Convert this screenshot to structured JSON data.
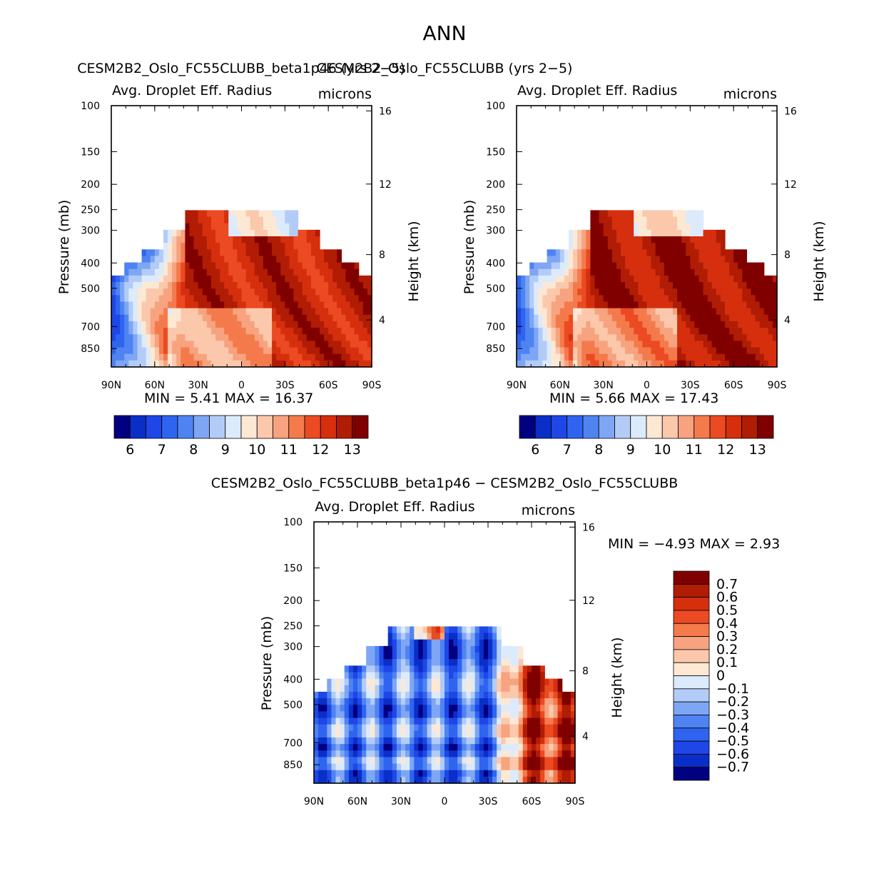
{
  "main_title": "ANN",
  "chart_data": [
    {
      "type": "heatmap",
      "title": "CESM2B2_Oslo_FC55CLUBB_beta1p46 (yrs 2−5)",
      "variable": "Avg. Droplet Eff. Radius",
      "units": "microns",
      "ylabel": "Pressure (mb)",
      "y2label": "Height (km)",
      "x_ticks": [
        "90N",
        "60N",
        "30N",
        "0",
        "30S",
        "60S",
        "90S"
      ],
      "y_ticks": [
        "100",
        "150",
        "200",
        "250",
        "300",
        "400",
        "500",
        "700",
        "850"
      ],
      "y2_ticks": [
        "16",
        "12",
        "8",
        "4"
      ],
      "min_label": "MIN =",
      "min_value": "5.41",
      "max_label": "MAX =",
      "max_value": "16.37",
      "colorbar_labels": [
        "6",
        "7",
        "8",
        "9",
        "10",
        "11",
        "12",
        "13"
      ]
    },
    {
      "type": "heatmap",
      "title": "CESM2B2_Oslo_FC55CLUBB (yrs 2−5)",
      "variable": "Avg. Droplet Eff. Radius",
      "units": "microns",
      "ylabel": "Pressure (mb)",
      "y2label": "Height (km)",
      "x_ticks": [
        "90N",
        "60N",
        "30N",
        "0",
        "30S",
        "60S",
        "90S"
      ],
      "y_ticks": [
        "100",
        "150",
        "200",
        "250",
        "300",
        "400",
        "500",
        "700",
        "850"
      ],
      "y2_ticks": [
        "16",
        "12",
        "8",
        "4"
      ],
      "min_label": "MIN =",
      "min_value": "5.66",
      "max_label": "MAX =",
      "max_value": "17.43",
      "colorbar_labels": [
        "6",
        "7",
        "8",
        "9",
        "10",
        "11",
        "12",
        "13"
      ]
    },
    {
      "type": "heatmap",
      "title": "CESM2B2_Oslo_FC55CLUBB_beta1p46 − CESM2B2_Oslo_FC55CLUBB",
      "variable": "Avg. Droplet Eff. Radius",
      "units": "microns",
      "ylabel": "Pressure (mb)",
      "y2label": "Height (km)",
      "x_ticks": [
        "90N",
        "60N",
        "30N",
        "0",
        "30S",
        "60S",
        "90S"
      ],
      "y_ticks": [
        "100",
        "150",
        "200",
        "250",
        "300",
        "400",
        "500",
        "700",
        "850"
      ],
      "y2_ticks": [
        "16",
        "12",
        "8",
        "4"
      ],
      "min_label": "MIN =",
      "min_value": "−4.93",
      "max_label": "MAX =",
      "max_value": "2.93",
      "colorbar_labels": [
        "0.7",
        "0.6",
        "0.5",
        "0.4",
        "0.3",
        "0.2",
        "0.1",
        "0",
        "−0.1",
        "−0.2",
        "−0.3",
        "−0.4",
        "−0.5",
        "−0.6",
        "−0.7"
      ]
    }
  ],
  "colors": {
    "abs_scale": [
      "#000080",
      "#0a2fc8",
      "#1f46e6",
      "#2f64f0",
      "#4f83f2",
      "#7fa6f4",
      "#b3ccf7",
      "#dcebfc",
      "#fde8d4",
      "#fbc8ac",
      "#f7a37f",
      "#f47a4c",
      "#eb4a22",
      "#d52f0e",
      "#b01c04",
      "#800000"
    ],
    "diff_scale": [
      "#800000",
      "#b01c04",
      "#d52f0e",
      "#eb4a22",
      "#f47a4c",
      "#f7a37f",
      "#fbc8ac",
      "#fde8d4",
      "#dcebfc",
      "#b3ccf7",
      "#7fa6f4",
      "#4f83f2",
      "#2f64f0",
      "#1f46e6",
      "#0a2fc8",
      "#000080"
    ]
  }
}
